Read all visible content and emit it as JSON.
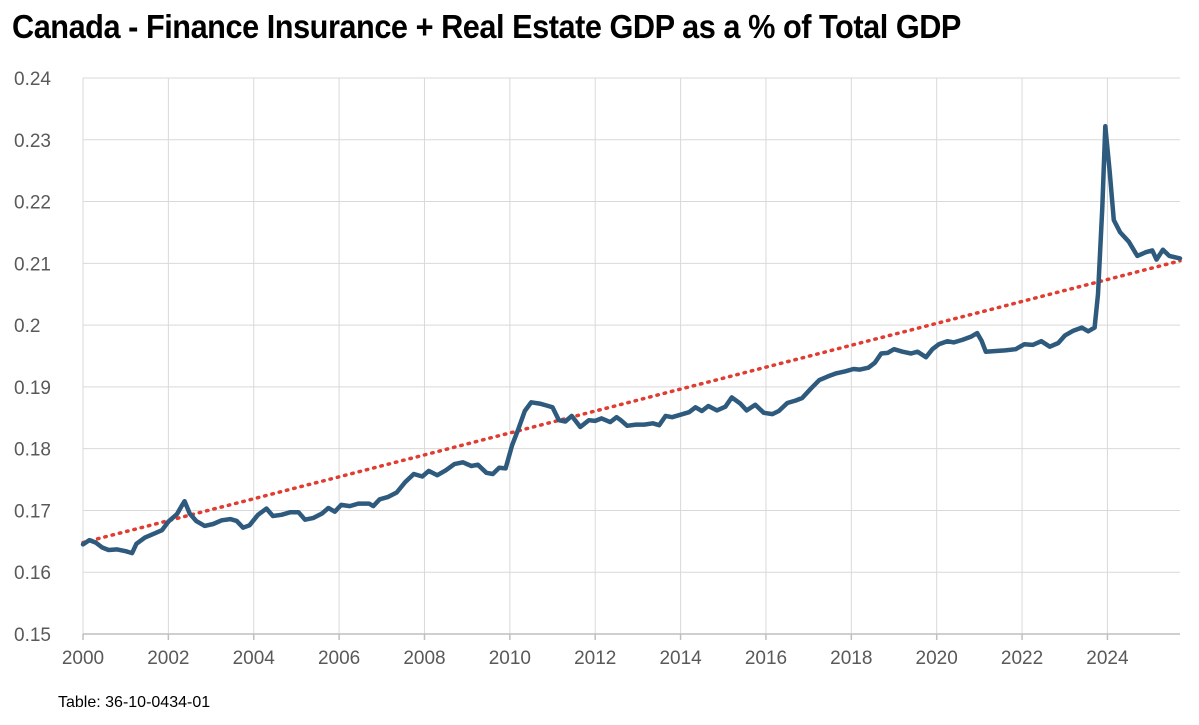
{
  "chart_data": {
    "type": "line",
    "title": "Canada - Finance Insurance + Real Estate GDP as a % of Total GDP",
    "xlabel": "",
    "ylabel": "",
    "xlim": [
      2000,
      2025.7
    ],
    "ylim": [
      0.15,
      0.24
    ],
    "x_ticks": [
      "2000",
      "2002",
      "2004",
      "2006",
      "2008",
      "2010",
      "2012",
      "2014",
      "2016",
      "2018",
      "2020",
      "2022",
      "2024"
    ],
    "y_ticks": [
      "0.15",
      "0.16",
      "0.17",
      "0.18",
      "0.19",
      "0.2",
      "0.21",
      "0.22",
      "0.23",
      "0.24"
    ],
    "grid": true,
    "series": [
      {
        "color": "#2e5a7e",
        "points": [
          [
            2000.0,
            0.1645
          ],
          [
            2000.15,
            0.1652
          ],
          [
            2000.3,
            0.1648
          ],
          [
            2000.45,
            0.164
          ],
          [
            2000.6,
            0.1636
          ],
          [
            2000.8,
            0.1637
          ],
          [
            2001.0,
            0.1634
          ],
          [
            2001.15,
            0.1631
          ],
          [
            2001.25,
            0.1646
          ],
          [
            2001.45,
            0.1656
          ],
          [
            2001.65,
            0.1662
          ],
          [
            2001.85,
            0.1668
          ],
          [
            2002.0,
            0.1682
          ],
          [
            2002.2,
            0.1694
          ],
          [
            2002.3,
            0.1706
          ],
          [
            2002.38,
            0.1715
          ],
          [
            2002.5,
            0.1695
          ],
          [
            2002.65,
            0.1683
          ],
          [
            2002.85,
            0.1675
          ],
          [
            2003.05,
            0.1678
          ],
          [
            2003.25,
            0.1684
          ],
          [
            2003.45,
            0.1686
          ],
          [
            2003.6,
            0.1683
          ],
          [
            2003.75,
            0.1672
          ],
          [
            2003.9,
            0.1676
          ],
          [
            2004.1,
            0.1693
          ],
          [
            2004.3,
            0.1703
          ],
          [
            2004.45,
            0.1691
          ],
          [
            2004.65,
            0.1693
          ],
          [
            2004.85,
            0.1697
          ],
          [
            2005.05,
            0.1697
          ],
          [
            2005.2,
            0.1685
          ],
          [
            2005.4,
            0.1688
          ],
          [
            2005.6,
            0.1695
          ],
          [
            2005.75,
            0.1704
          ],
          [
            2005.9,
            0.1698
          ],
          [
            2006.05,
            0.1709
          ],
          [
            2006.25,
            0.1707
          ],
          [
            2006.45,
            0.1711
          ],
          [
            2006.7,
            0.1711
          ],
          [
            2006.8,
            0.1707
          ],
          [
            2006.95,
            0.1718
          ],
          [
            2007.15,
            0.1722
          ],
          [
            2007.35,
            0.1729
          ],
          [
            2007.55,
            0.1746
          ],
          [
            2007.75,
            0.1759
          ],
          [
            2007.95,
            0.1755
          ],
          [
            2008.1,
            0.1764
          ],
          [
            2008.3,
            0.1757
          ],
          [
            2008.5,
            0.1765
          ],
          [
            2008.7,
            0.1775
          ],
          [
            2008.9,
            0.1778
          ],
          [
            2009.1,
            0.1772
          ],
          [
            2009.25,
            0.1774
          ],
          [
            2009.45,
            0.1761
          ],
          [
            2009.6,
            0.1759
          ],
          [
            2009.75,
            0.1769
          ],
          [
            2009.9,
            0.1768
          ],
          [
            2010.05,
            0.1805
          ],
          [
            2010.2,
            0.1832
          ],
          [
            2010.35,
            0.1861
          ],
          [
            2010.5,
            0.1875
          ],
          [
            2010.7,
            0.1873
          ],
          [
            2010.9,
            0.1869
          ],
          [
            2011.0,
            0.1867
          ],
          [
            2011.15,
            0.1846
          ],
          [
            2011.3,
            0.1844
          ],
          [
            2011.45,
            0.1853
          ],
          [
            2011.65,
            0.1835
          ],
          [
            2011.85,
            0.1846
          ],
          [
            2012.0,
            0.1845
          ],
          [
            2012.15,
            0.1849
          ],
          [
            2012.35,
            0.1843
          ],
          [
            2012.5,
            0.1851
          ],
          [
            2012.6,
            0.1846
          ],
          [
            2012.75,
            0.1837
          ],
          [
            2012.95,
            0.1839
          ],
          [
            2013.15,
            0.1839
          ],
          [
            2013.35,
            0.1841
          ],
          [
            2013.5,
            0.1838
          ],
          [
            2013.65,
            0.1853
          ],
          [
            2013.8,
            0.1851
          ],
          [
            2014.0,
            0.1855
          ],
          [
            2014.2,
            0.1859
          ],
          [
            2014.35,
            0.1867
          ],
          [
            2014.5,
            0.1861
          ],
          [
            2014.65,
            0.1869
          ],
          [
            2014.85,
            0.1862
          ],
          [
            2015.05,
            0.1868
          ],
          [
            2015.2,
            0.1883
          ],
          [
            2015.4,
            0.1873
          ],
          [
            2015.55,
            0.1862
          ],
          [
            2015.75,
            0.1871
          ],
          [
            2015.95,
            0.1858
          ],
          [
            2016.15,
            0.1856
          ],
          [
            2016.3,
            0.1861
          ],
          [
            2016.5,
            0.1874
          ],
          [
            2016.7,
            0.1878
          ],
          [
            2016.85,
            0.1882
          ],
          [
            2017.05,
            0.1897
          ],
          [
            2017.25,
            0.1911
          ],
          [
            2017.45,
            0.1917
          ],
          [
            2017.65,
            0.1922
          ],
          [
            2017.85,
            0.1925
          ],
          [
            2018.05,
            0.1929
          ],
          [
            2018.2,
            0.1928
          ],
          [
            2018.4,
            0.1931
          ],
          [
            2018.55,
            0.1939
          ],
          [
            2018.7,
            0.1954
          ],
          [
            2018.85,
            0.1955
          ],
          [
            2019.0,
            0.1961
          ],
          [
            2019.2,
            0.1957
          ],
          [
            2019.4,
            0.1954
          ],
          [
            2019.55,
            0.1957
          ],
          [
            2019.75,
            0.1948
          ],
          [
            2019.9,
            0.1961
          ],
          [
            2020.05,
            0.1969
          ],
          [
            2020.25,
            0.1974
          ],
          [
            2020.4,
            0.1972
          ],
          [
            2020.6,
            0.1976
          ],
          [
            2020.8,
            0.1981
          ],
          [
            2020.95,
            0.1987
          ],
          [
            2021.05,
            0.1975
          ],
          [
            2021.15,
            0.1957
          ],
          [
            2021.35,
            0.1958
          ],
          [
            2021.6,
            0.1959
          ],
          [
            2021.85,
            0.1961
          ],
          [
            2022.05,
            0.1969
          ],
          [
            2022.25,
            0.1968
          ],
          [
            2022.45,
            0.1974
          ],
          [
            2022.65,
            0.1965
          ],
          [
            2022.85,
            0.1971
          ],
          [
            2023.0,
            0.1983
          ],
          [
            2023.2,
            0.1991
          ],
          [
            2023.4,
            0.1996
          ],
          [
            2023.55,
            0.199
          ],
          [
            2023.7,
            0.1996
          ],
          [
            2023.78,
            0.205
          ],
          [
            2023.88,
            0.219
          ],
          [
            2023.95,
            0.2322
          ],
          [
            2024.05,
            0.225
          ],
          [
            2024.15,
            0.217
          ],
          [
            2024.3,
            0.215
          ],
          [
            2024.5,
            0.2135
          ],
          [
            2024.7,
            0.2112
          ],
          [
            2024.9,
            0.2118
          ],
          [
            2025.05,
            0.2121
          ],
          [
            2025.15,
            0.2106
          ],
          [
            2025.3,
            0.2122
          ],
          [
            2025.45,
            0.2112
          ],
          [
            2025.7,
            0.2108
          ]
        ]
      }
    ],
    "trendline": {
      "style": "dotted",
      "color": "#e03c31",
      "from": [
        2000.0,
        0.1648
      ],
      "to": [
        2025.7,
        0.2104
      ]
    }
  },
  "source_label": "Table: 36-10-0434-01"
}
